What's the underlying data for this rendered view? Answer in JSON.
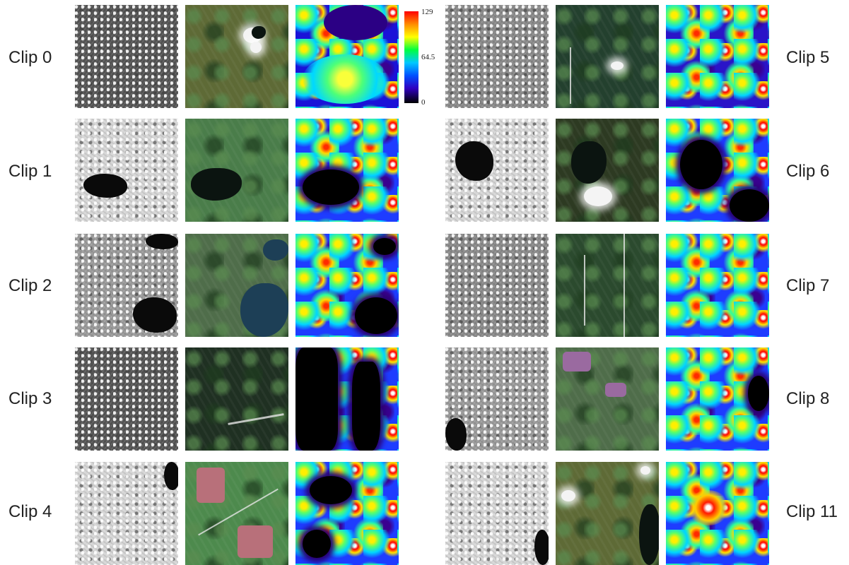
{
  "clips": [
    {
      "label": "Clip 0"
    },
    {
      "label": "Clip 1"
    },
    {
      "label": "Clip 2"
    },
    {
      "label": "Clip 3"
    },
    {
      "label": "Clip 4"
    },
    {
      "label": "Clip 5"
    },
    {
      "label": "Clip 6"
    },
    {
      "label": "Clip 7"
    },
    {
      "label": "Clip 8"
    },
    {
      "label": "Clip 11"
    }
  ],
  "colorbar": {
    "max": "129",
    "mid": "64.5",
    "min": "0",
    "colors": [
      "#ff0000",
      "#ffff00",
      "#00ff40",
      "#00c8ff",
      "#0050ff",
      "#3000c0",
      "#000000"
    ]
  }
}
